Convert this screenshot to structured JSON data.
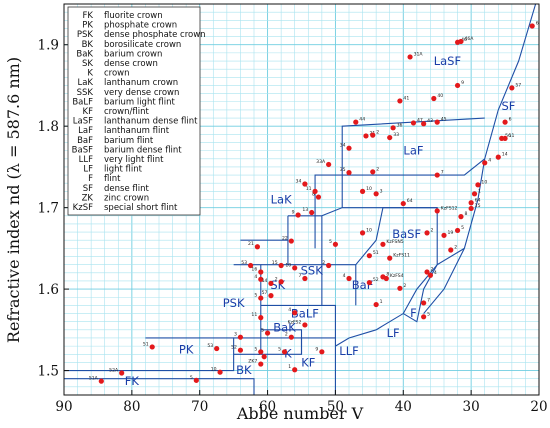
{
  "chart_data": {
    "type": "scatter",
    "xlabel": "Abbe number V",
    "ylabel": "Refractive index nd  (λ = 587.6 nm)",
    "xlim": [
      90,
      20
    ],
    "ylim": [
      1.47,
      1.95
    ],
    "x_reversed": true,
    "grid": true,
    "xticks": [
      90,
      80,
      70,
      60,
      50,
      40,
      30,
      20
    ],
    "yticks": [
      1.5,
      1.6,
      1.7,
      1.8,
      1.9
    ],
    "legend_position": "top-left",
    "legend": [
      {
        "code": "FK",
        "name": "fluorite crown"
      },
      {
        "code": "PK",
        "name": "phosphate crown"
      },
      {
        "code": "PSK",
        "name": "dense phosphate crown"
      },
      {
        "code": "BK",
        "name": "borosilicate crown"
      },
      {
        "code": "BaK",
        "name": "barium crown"
      },
      {
        "code": "SK",
        "name": "dense crown"
      },
      {
        "code": "K",
        "name": "crown"
      },
      {
        "code": "LaK",
        "name": "lanthanum crown"
      },
      {
        "code": "SSK",
        "name": "very dense crown"
      },
      {
        "code": "BaLF",
        "name": "barium light flint"
      },
      {
        "code": "KF",
        "name": "crown/flint"
      },
      {
        "code": "LaSF",
        "name": "lanthanum dense flint"
      },
      {
        "code": "LaF",
        "name": "lanthanum flint"
      },
      {
        "code": "BaF",
        "name": "barium flint"
      },
      {
        "code": "BaSF",
        "name": "barium dense flint"
      },
      {
        "code": "LLF",
        "name": "very light flint"
      },
      {
        "code": "LF",
        "name": "light flint"
      },
      {
        "code": "F",
        "name": "flint"
      },
      {
        "code": "SF",
        "name": "dense flint"
      },
      {
        "code": "ZK",
        "name": "zinc crown"
      },
      {
        "code": "KzSF",
        "name": "special short flint"
      }
    ],
    "regions": [
      {
        "label": "FK",
        "x": 80,
        "y": 1.482
      },
      {
        "label": "PK",
        "x": 72,
        "y": 1.521
      },
      {
        "label": "BK",
        "x": 63.5,
        "y": 1.496
      },
      {
        "label": "PSK",
        "x": 65,
        "y": 1.578
      },
      {
        "label": "SK",
        "x": 58.5,
        "y": 1.6
      },
      {
        "label": "BaK",
        "x": 57.5,
        "y": 1.548
      },
      {
        "label": "K",
        "x": 57,
        "y": 1.516
      },
      {
        "label": "KF",
        "x": 54,
        "y": 1.505
      },
      {
        "label": "BaLF",
        "x": 54.5,
        "y": 1.565
      },
      {
        "label": "LLF",
        "x": 48,
        "y": 1.519
      },
      {
        "label": "LF",
        "x": 41.5,
        "y": 1.541
      },
      {
        "label": "F",
        "x": 38.5,
        "y": 1.566
      },
      {
        "label": "SSK",
        "x": 53.5,
        "y": 1.618
      },
      {
        "label": "BaF",
        "x": 46,
        "y": 1.6
      },
      {
        "label": "BaSF",
        "x": 39.5,
        "y": 1.663
      },
      {
        "label": "LaK",
        "x": 58,
        "y": 1.705
      },
      {
        "label": "LaF",
        "x": 38.5,
        "y": 1.765
      },
      {
        "label": "LaSF",
        "x": 33.5,
        "y": 1.875
      },
      {
        "label": "SF",
        "x": 24.5,
        "y": 1.82
      }
    ],
    "glasses": [
      {
        "id": "51A",
        "x": 84.5,
        "y": 1.487
      },
      {
        "id": "52A",
        "x": 81.5,
        "y": 1.497
      },
      {
        "id": "51",
        "x": 77,
        "y": 1.529
      },
      {
        "id": "5",
        "x": 70.5,
        "y": 1.488
      },
      {
        "id": "10",
        "x": 67,
        "y": 1.498
      },
      {
        "id": "53",
        "x": 67.5,
        "y": 1.527
      },
      {
        "id": "52",
        "x": 64,
        "y": 1.525
      },
      {
        "id": "7",
        "x": 60.5,
        "y": 1.517
      },
      {
        "id": "ZK7",
        "x": 61,
        "y": 1.508
      },
      {
        "id": "3",
        "x": 64,
        "y": 1.541
      },
      {
        "id": "5",
        "x": 61,
        "y": 1.523
      },
      {
        "id": "5",
        "x": 60,
        "y": 1.546
      },
      {
        "id": "11",
        "x": 61,
        "y": 1.565
      },
      {
        "id": "5",
        "x": 57.5,
        "y": 1.523
      },
      {
        "id": "1",
        "x": 56,
        "y": 1.501
      },
      {
        "id": "2",
        "x": 56.5,
        "y": 1.541
      },
      {
        "id": "4",
        "x": 56,
        "y": 1.571
      },
      {
        "id": "KzFS2",
        "x": 54.5,
        "y": 1.556
      },
      {
        "id": "9",
        "x": 52,
        "y": 1.523
      },
      {
        "id": "53",
        "x": 62.5,
        "y": 1.629
      },
      {
        "id": "16",
        "x": 61,
        "y": 1.621
      },
      {
        "id": "4",
        "x": 61,
        "y": 1.612
      },
      {
        "id": "5",
        "x": 61,
        "y": 1.589
      },
      {
        "id": "57",
        "x": 59.5,
        "y": 1.592
      },
      {
        "id": "14",
        "x": 59.5,
        "y": 1.607
      },
      {
        "id": "2",
        "x": 58,
        "y": 1.609
      },
      {
        "id": "15",
        "x": 58,
        "y": 1.629
      },
      {
        "id": "10",
        "x": 56,
        "y": 1.626
      },
      {
        "id": "7",
        "x": 54.5,
        "y": 1.613
      },
      {
        "id": "21",
        "x": 61.5,
        "y": 1.652
      },
      {
        "id": "22",
        "x": 56.5,
        "y": 1.659
      },
      {
        "id": "2",
        "x": 51,
        "y": 1.629
      },
      {
        "id": "5",
        "x": 50,
        "y": 1.655
      },
      {
        "id": "10",
        "x": 46,
        "y": 1.669
      },
      {
        "id": "51",
        "x": 45,
        "y": 1.641
      },
      {
        "id": "4",
        "x": 48,
        "y": 1.613
      },
      {
        "id": "52",
        "x": 45,
        "y": 1.608
      },
      {
        "id": "KzFSN5",
        "x": 43,
        "y": 1.655
      },
      {
        "id": "KzFS11",
        "x": 42,
        "y": 1.638
      },
      {
        "id": "KzFS4",
        "x": 42.5,
        "y": 1.613
      },
      {
        "id": "1",
        "x": 44,
        "y": 1.581
      },
      {
        "id": "8",
        "x": 43,
        "y": 1.615
      },
      {
        "id": "2",
        "x": 40.5,
        "y": 1.601
      },
      {
        "id": "7",
        "x": 37,
        "y": 1.583
      },
      {
        "id": "5",
        "x": 37,
        "y": 1.566
      },
      {
        "id": "2",
        "x": 36.5,
        "y": 1.621
      },
      {
        "id": "4",
        "x": 36,
        "y": 1.617
      },
      {
        "id": "2",
        "x": 36.5,
        "y": 1.669
      },
      {
        "id": "19",
        "x": 34,
        "y": 1.666
      },
      {
        "id": "2",
        "x": 33,
        "y": 1.648
      },
      {
        "id": "5",
        "x": 32,
        "y": 1.672
      },
      {
        "id": "8",
        "x": 31.5,
        "y": 1.689
      },
      {
        "id": "15",
        "x": 30,
        "y": 1.699
      },
      {
        "id": "64",
        "x": 30,
        "y": 1.706
      },
      {
        "id": "1",
        "x": 29.5,
        "y": 1.717
      },
      {
        "id": "10",
        "x": 29,
        "y": 1.728
      },
      {
        "id": "4",
        "x": 28,
        "y": 1.755
      },
      {
        "id": "14",
        "x": 26,
        "y": 1.762
      },
      {
        "id": "56",
        "x": 25.5,
        "y": 1.785
      },
      {
        "id": "11",
        "x": 25,
        "y": 1.785
      },
      {
        "id": "6",
        "x": 25,
        "y": 1.805
      },
      {
        "id": "57",
        "x": 24,
        "y": 1.847
      },
      {
        "id": "66",
        "x": 21,
        "y": 1.923
      },
      {
        "id": "KzFS12",
        "x": 35,
        "y": 1.696
      },
      {
        "id": "64",
        "x": 40,
        "y": 1.705
      },
      {
        "id": "7",
        "x": 35,
        "y": 1.74
      },
      {
        "id": "2",
        "x": 44.5,
        "y": 1.744
      },
      {
        "id": "35",
        "x": 48,
        "y": 1.743
      },
      {
        "id": "10",
        "x": 46,
        "y": 1.72
      },
      {
        "id": "3",
        "x": 44,
        "y": 1.717
      },
      {
        "id": "33A",
        "x": 51,
        "y": 1.753
      },
      {
        "id": "34",
        "x": 54.5,
        "y": 1.729
      },
      {
        "id": "8",
        "x": 52.5,
        "y": 1.713
      },
      {
        "id": "11",
        "x": 53,
        "y": 1.72
      },
      {
        "id": "13",
        "x": 53.5,
        "y": 1.694
      },
      {
        "id": "9",
        "x": 55.5,
        "y": 1.691
      },
      {
        "id": "34",
        "x": 48,
        "y": 1.773
      },
      {
        "id": "21",
        "x": 45.5,
        "y": 1.788
      },
      {
        "id": "44",
        "x": 47,
        "y": 1.805
      },
      {
        "id": "2",
        "x": 44.5,
        "y": 1.789
      },
      {
        "id": "33",
        "x": 42,
        "y": 1.786
      },
      {
        "id": "36",
        "x": 41.5,
        "y": 1.798
      },
      {
        "id": "47",
        "x": 38.5,
        "y": 1.804
      },
      {
        "id": "43",
        "x": 37,
        "y": 1.803
      },
      {
        "id": "45",
        "x": 35,
        "y": 1.805
      },
      {
        "id": "41",
        "x": 40.5,
        "y": 1.831
      },
      {
        "id": "40",
        "x": 35.5,
        "y": 1.834
      },
      {
        "id": "9",
        "x": 32,
        "y": 1.85
      },
      {
        "id": "31A",
        "x": 39,
        "y": 1.885
      },
      {
        "id": "46",
        "x": 32,
        "y": 1.903
      },
      {
        "id": "46A",
        "x": 31.5,
        "y": 1.904
      }
    ]
  }
}
